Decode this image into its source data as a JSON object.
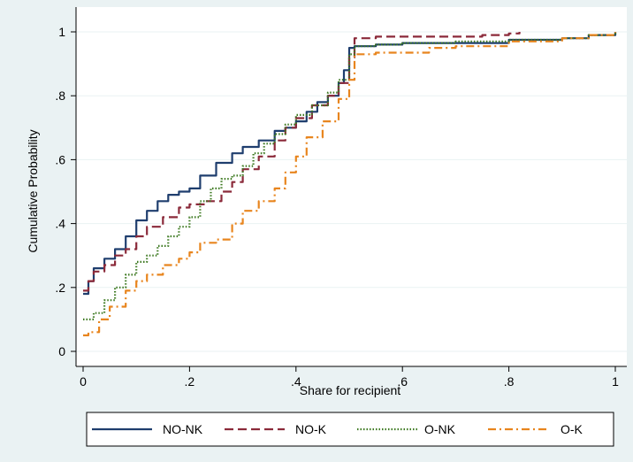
{
  "chart_data": {
    "type": "line",
    "title": "",
    "xlabel": "Share for recipient",
    "ylabel": "Cumulative Probability",
    "xlim": [
      0,
      1
    ],
    "ylim": [
      0,
      1
    ],
    "grid": true,
    "legend_position": "bottom",
    "x_ticks": [
      {
        "value": 0,
        "label": "0"
      },
      {
        "value": 0.2,
        "label": ".2"
      },
      {
        "value": 0.4,
        "label": ".4"
      },
      {
        "value": 0.6,
        "label": ".6"
      },
      {
        "value": 0.8,
        "label": ".8"
      },
      {
        "value": 1,
        "label": "1"
      }
    ],
    "y_ticks": [
      {
        "value": 0,
        "label": "0"
      },
      {
        "value": 0.2,
        "label": ".2"
      },
      {
        "value": 0.4,
        "label": ".4"
      },
      {
        "value": 0.6,
        "label": ".6"
      },
      {
        "value": 0.8,
        "label": ".8"
      },
      {
        "value": 1,
        "label": "1"
      }
    ],
    "series": [
      {
        "name": "NO-NK",
        "color": "#1f3e6e",
        "dash": "solid",
        "x": [
          0.0,
          0.01,
          0.02,
          0.04,
          0.06,
          0.08,
          0.1,
          0.12,
          0.14,
          0.16,
          0.18,
          0.2,
          0.22,
          0.25,
          0.28,
          0.3,
          0.33,
          0.36,
          0.38,
          0.4,
          0.42,
          0.44,
          0.46,
          0.48,
          0.49,
          0.5,
          0.51,
          0.55,
          0.6,
          0.7,
          0.8,
          0.9,
          0.95,
          1.0
        ],
        "y": [
          0.18,
          0.22,
          0.26,
          0.29,
          0.32,
          0.36,
          0.41,
          0.44,
          0.47,
          0.49,
          0.5,
          0.51,
          0.55,
          0.59,
          0.62,
          0.64,
          0.66,
          0.69,
          0.7,
          0.72,
          0.75,
          0.78,
          0.8,
          0.84,
          0.88,
          0.95,
          0.955,
          0.96,
          0.965,
          0.965,
          0.975,
          0.98,
          0.99,
          1.0
        ]
      },
      {
        "name": "NO-K",
        "color": "#8b2a3a",
        "dash": "long-dash",
        "x": [
          0.0,
          0.01,
          0.02,
          0.04,
          0.06,
          0.08,
          0.1,
          0.12,
          0.15,
          0.18,
          0.2,
          0.23,
          0.26,
          0.28,
          0.3,
          0.33,
          0.36,
          0.38,
          0.4,
          0.43,
          0.46,
          0.48,
          0.5,
          0.51,
          0.55,
          0.6,
          0.7,
          0.75,
          0.8,
          0.82
        ],
        "y": [
          0.19,
          0.22,
          0.25,
          0.27,
          0.3,
          0.32,
          0.36,
          0.39,
          0.42,
          0.45,
          0.46,
          0.47,
          0.5,
          0.53,
          0.57,
          0.61,
          0.66,
          0.7,
          0.73,
          0.77,
          0.8,
          0.84,
          0.92,
          0.98,
          0.985,
          0.985,
          0.985,
          0.99,
          0.995,
          1.0
        ]
      },
      {
        "name": "O-NK",
        "color": "#3e7a22",
        "dash": "dot",
        "x": [
          0.0,
          0.02,
          0.04,
          0.06,
          0.08,
          0.1,
          0.12,
          0.14,
          0.16,
          0.18,
          0.2,
          0.22,
          0.24,
          0.26,
          0.28,
          0.3,
          0.32,
          0.34,
          0.36,
          0.38,
          0.4,
          0.43,
          0.46,
          0.48,
          0.5,
          0.51,
          0.55,
          0.6,
          0.7,
          0.8,
          0.9,
          0.95,
          1.0
        ],
        "y": [
          0.1,
          0.12,
          0.16,
          0.2,
          0.24,
          0.28,
          0.3,
          0.33,
          0.36,
          0.39,
          0.42,
          0.47,
          0.51,
          0.54,
          0.55,
          0.58,
          0.62,
          0.65,
          0.68,
          0.71,
          0.74,
          0.77,
          0.81,
          0.85,
          0.93,
          0.955,
          0.96,
          0.965,
          0.97,
          0.975,
          0.98,
          0.99,
          1.0
        ]
      },
      {
        "name": "O-K",
        "color": "#e8851e",
        "dash": "dash-dot",
        "x": [
          0.0,
          0.01,
          0.03,
          0.05,
          0.08,
          0.1,
          0.12,
          0.15,
          0.18,
          0.2,
          0.22,
          0.25,
          0.28,
          0.3,
          0.33,
          0.36,
          0.38,
          0.4,
          0.42,
          0.45,
          0.48,
          0.5,
          0.51,
          0.55,
          0.6,
          0.65,
          0.7,
          0.8,
          0.9,
          0.95,
          1.0
        ],
        "y": [
          0.05,
          0.06,
          0.1,
          0.14,
          0.19,
          0.22,
          0.24,
          0.27,
          0.29,
          0.31,
          0.34,
          0.35,
          0.4,
          0.44,
          0.47,
          0.51,
          0.56,
          0.61,
          0.67,
          0.72,
          0.79,
          0.85,
          0.93,
          0.935,
          0.935,
          0.95,
          0.955,
          0.97,
          0.98,
          0.99,
          1.0
        ]
      }
    ]
  }
}
